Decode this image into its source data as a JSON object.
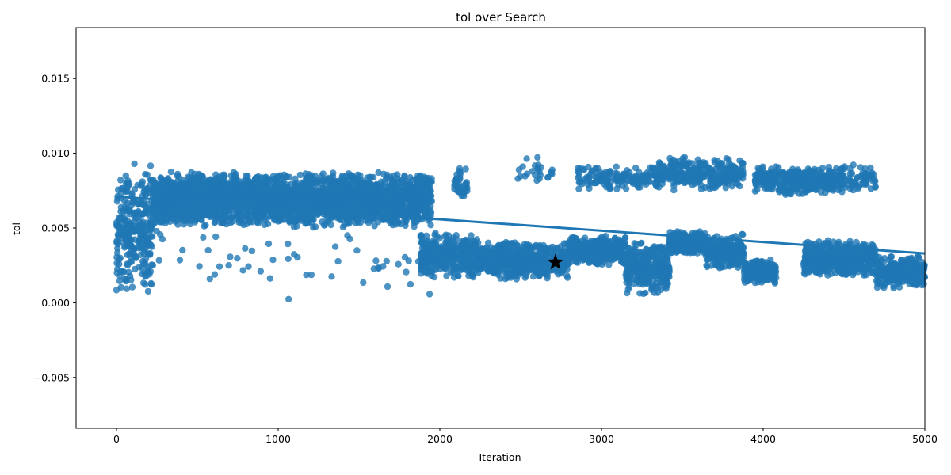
{
  "chart_data": {
    "type": "scatter",
    "title": "tol over Search",
    "xlabel": "Iteration",
    "ylabel": "tol",
    "xlim": [
      -250,
      5000
    ],
    "ylim": [
      -0.0084,
      0.0184
    ],
    "xticks": [
      0,
      1000,
      2000,
      3000,
      4000,
      5000
    ],
    "xtick_labels": [
      "0",
      "1000",
      "2000",
      "3000",
      "4000",
      "5000"
    ],
    "yticks": [
      -0.005,
      0.0,
      0.005,
      0.01,
      0.015
    ],
    "ytick_labels": [
      "−0.005",
      "0.000",
      "0.005",
      "0.010",
      "0.015"
    ],
    "grid": false,
    "point_color": "#1f77b4",
    "trend_line": {
      "x": [
        0,
        5000
      ],
      "y": [
        0.0071,
        0.0033
      ],
      "color": "#1f77b4"
    },
    "best_point": {
      "x": 2715,
      "y": 0.0027,
      "marker": "star",
      "color": "#000000"
    },
    "clusters": [
      {
        "x": [
          0,
          230
        ],
        "y": [
          0.0005,
          0.0095
        ],
        "n": 300
      },
      {
        "x": [
          230,
          1950
        ],
        "y": [
          0.005,
          0.0088
        ],
        "n": 2600
      },
      {
        "x": [
          1880,
          2230
        ],
        "y": [
          0.0015,
          0.0048
        ],
        "n": 350
      },
      {
        "x": [
          2230,
          2800
        ],
        "y": [
          0.0015,
          0.0042
        ],
        "n": 600
      },
      {
        "x": [
          2800,
          3150
        ],
        "y": [
          0.0025,
          0.0045
        ],
        "n": 400
      },
      {
        "x": [
          3150,
          3420
        ],
        "y": [
          0.0005,
          0.0042
        ],
        "n": 300
      },
      {
        "x": [
          3420,
          3640
        ],
        "y": [
          0.0032,
          0.0048
        ],
        "n": 300
      },
      {
        "x": [
          3640,
          3880
        ],
        "y": [
          0.0022,
          0.0046
        ],
        "n": 300
      },
      {
        "x": [
          3880,
          4080
        ],
        "y": [
          0.0012,
          0.003
        ],
        "n": 200
      },
      {
        "x": [
          4250,
          4700
        ],
        "y": [
          0.0017,
          0.0042
        ],
        "n": 500
      },
      {
        "x": [
          4700,
          5000
        ],
        "y": [
          0.0009,
          0.0032
        ],
        "n": 300
      },
      {
        "x": [
          2850,
          3350
        ],
        "y": [
          0.0075,
          0.0092
        ],
        "n": 150
      },
      {
        "x": [
          3350,
          3880
        ],
        "y": [
          0.0075,
          0.0098
        ],
        "n": 300
      },
      {
        "x": [
          3950,
          4500
        ],
        "y": [
          0.0072,
          0.0092
        ],
        "n": 400
      },
      {
        "x": [
          4500,
          4700
        ],
        "y": [
          0.0074,
          0.0094
        ],
        "n": 60
      },
      {
        "x": [
          2090,
          2170
        ],
        "y": [
          0.0066,
          0.0092
        ],
        "n": 40
      },
      {
        "x": [
          2480,
          2700
        ],
        "y": [
          0.0078,
          0.0098
        ],
        "n": 25
      },
      {
        "x": [
          0,
          2000
        ],
        "y": [
          0.0,
          0.0055
        ],
        "n": 60
      }
    ]
  }
}
